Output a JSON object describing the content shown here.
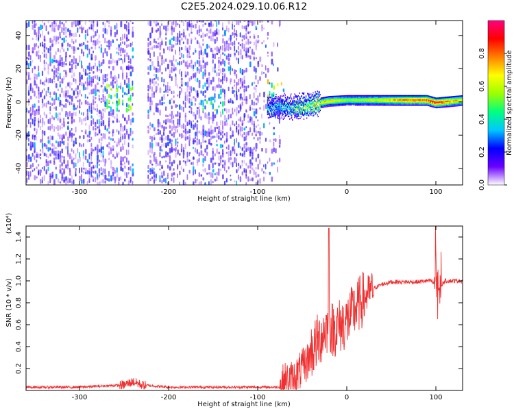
{
  "title": "C2E5.2024.029.10.06.R12",
  "chart_data": [
    {
      "type": "heatmap",
      "title": "C2E5.2024.029.10.06.R12",
      "xlabel": "Height of straight line (km)",
      "ylabel": "Frequency (Hz)",
      "xlim": [
        -360,
        130
      ],
      "ylim": [
        -50,
        49
      ],
      "x_ticks": [
        -300,
        -200,
        -100,
        0,
        100
      ],
      "y_ticks": [
        -40,
        -20,
        0,
        20,
        40
      ],
      "colorbar": {
        "label": "Normalized spectral amplitude",
        "range": [
          0.0,
          1.0
        ],
        "ticks": [
          0.0,
          0.2,
          0.4,
          0.6,
          0.8
        ],
        "colormap": [
          "#ffffff",
          "#6a00ff",
          "#0000ff",
          "#00c8ff",
          "#00ff80",
          "#9cff00",
          "#ffff00",
          "#ff8000",
          "#ff0000",
          "#ff0080"
        ]
      },
      "regions": [
        {
          "name": "noise",
          "x": [
            -360,
            -75
          ],
          "y": [
            -50,
            49
          ],
          "amplitude": 0.12
        },
        {
          "name": "gap",
          "x": [
            -240,
            -225
          ],
          "y": [
            -50,
            49
          ],
          "amplitude": 0.0
        },
        {
          "name": "cluster",
          "x": [
            -270,
            -230
          ],
          "y": [
            -8,
            8
          ],
          "amplitude": 0.35
        },
        {
          "name": "cluster",
          "x": [
            -165,
            -140
          ],
          "y": [
            -6,
            6
          ],
          "amplitude": 0.3
        },
        {
          "name": "transition",
          "x": [
            -90,
            -30
          ],
          "y": [
            -10,
            10
          ],
          "amplitude": 0.45
        }
      ],
      "tone_line": [
        {
          "x": -90,
          "y": -2,
          "amp": 0.35
        },
        {
          "x": -60,
          "y": -3,
          "amp": 0.5
        },
        {
          "x": -40,
          "y": -1,
          "amp": 0.7
        },
        {
          "x": -20,
          "y": 1,
          "amp": 0.75
        },
        {
          "x": 0,
          "y": 1.5,
          "amp": 0.6
        },
        {
          "x": 40,
          "y": 1.5,
          "amp": 0.7
        },
        {
          "x": 60,
          "y": 1.5,
          "amp": 0.85
        },
        {
          "x": 90,
          "y": 1.5,
          "amp": 0.9
        },
        {
          "x": 100,
          "y": 0,
          "amp": 0.95
        },
        {
          "x": 130,
          "y": 1.5,
          "amp": 0.75
        }
      ]
    },
    {
      "type": "line",
      "xlabel": "Height of straight line (km)",
      "ylabel": "SNR (10 * v/v)",
      "y_multiplier_label": "(x10⁴)",
      "xlim": [
        -360,
        130
      ],
      "ylim": [
        0,
        1.5
      ],
      "x_ticks": [
        -300,
        -200,
        -100,
        0,
        100
      ],
      "y_ticks": [
        0.2,
        0.4,
        0.6,
        0.8,
        1.0,
        1.2,
        1.4
      ],
      "color": "#f03030",
      "series": [
        {
          "x": [
            -360,
            -300,
            -250,
            -240,
            -230,
            -200,
            -150,
            -100,
            -75,
            -70,
            -60,
            -50,
            -45,
            -40,
            -35,
            -30,
            -25,
            -20,
            -15,
            -10,
            -5,
            0,
            10,
            20,
            30,
            40,
            50,
            60,
            70,
            80,
            90,
            95,
            100,
            102,
            105,
            110,
            120,
            130
          ],
          "y": [
            0.03,
            0.03,
            0.05,
            0.08,
            0.05,
            0.03,
            0.03,
            0.03,
            0.03,
            0.08,
            0.1,
            0.2,
            0.25,
            0.35,
            0.42,
            0.48,
            0.55,
            0.6,
            0.55,
            0.58,
            0.6,
            0.63,
            0.75,
            0.85,
            0.93,
            0.97,
            0.99,
            0.99,
            0.99,
            0.99,
            1.0,
            1.0,
            0.95,
            0.9,
            0.95,
            1.0,
            1.0,
            1.0
          ]
        }
      ],
      "spikes": [
        {
          "x": -20,
          "y": 1.48
        },
        {
          "x": 100,
          "y": 1.5
        },
        {
          "x": 102,
          "y": 0.65
        }
      ]
    }
  ]
}
